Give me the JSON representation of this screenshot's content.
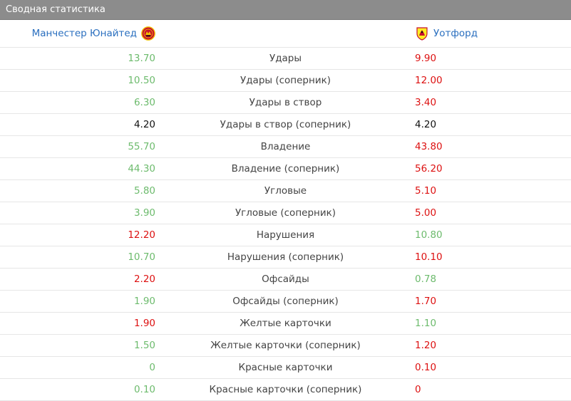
{
  "header": {
    "title": "Сводная статистика"
  },
  "teams": {
    "home": {
      "name": "Манчестер Юнайтед",
      "crest_icon": "man-utd-crest-icon",
      "color": "#c8102e"
    },
    "away": {
      "name": "Уотфорд",
      "crest_icon": "watford-crest-icon",
      "color": "#fbee23"
    }
  },
  "colors": {
    "better": "#6dbb6d",
    "worse": "#dd1111",
    "neutral": "#111111"
  },
  "stats": [
    {
      "label": "Удары",
      "home": "13.70",
      "away": "9.90",
      "home_status": "better",
      "away_status": "worse"
    },
    {
      "label": "Удары (соперник)",
      "home": "10.50",
      "away": "12.00",
      "home_status": "better",
      "away_status": "worse"
    },
    {
      "label": "Удары в створ",
      "home": "6.30",
      "away": "3.40",
      "home_status": "better",
      "away_status": "worse"
    },
    {
      "label": "Удары в створ (соперник)",
      "home": "4.20",
      "away": "4.20",
      "home_status": "neutral",
      "away_status": "neutral"
    },
    {
      "label": "Владение",
      "home": "55.70",
      "away": "43.80",
      "home_status": "better",
      "away_status": "worse"
    },
    {
      "label": "Владение (соперник)",
      "home": "44.30",
      "away": "56.20",
      "home_status": "better",
      "away_status": "worse"
    },
    {
      "label": "Угловые",
      "home": "5.80",
      "away": "5.10",
      "home_status": "better",
      "away_status": "worse"
    },
    {
      "label": "Угловые (соперник)",
      "home": "3.90",
      "away": "5.00",
      "home_status": "better",
      "away_status": "worse"
    },
    {
      "label": "Нарушения",
      "home": "12.20",
      "away": "10.80",
      "home_status": "worse",
      "away_status": "better"
    },
    {
      "label": "Нарушения (соперник)",
      "home": "10.70",
      "away": "10.10",
      "home_status": "better",
      "away_status": "worse"
    },
    {
      "label": "Офсайды",
      "home": "2.20",
      "away": "0.78",
      "home_status": "worse",
      "away_status": "better"
    },
    {
      "label": "Офсайды (соперник)",
      "home": "1.90",
      "away": "1.70",
      "home_status": "better",
      "away_status": "worse"
    },
    {
      "label": "Желтые карточки",
      "home": "1.90",
      "away": "1.10",
      "home_status": "worse",
      "away_status": "better"
    },
    {
      "label": "Желтые карточки (соперник)",
      "home": "1.50",
      "away": "1.20",
      "home_status": "better",
      "away_status": "worse"
    },
    {
      "label": "Красные карточки",
      "home": "0",
      "away": "0.10",
      "home_status": "better",
      "away_status": "worse"
    },
    {
      "label": "Красные карточки (соперник)",
      "home": "0.10",
      "away": "0",
      "home_status": "better",
      "away_status": "worse"
    }
  ]
}
